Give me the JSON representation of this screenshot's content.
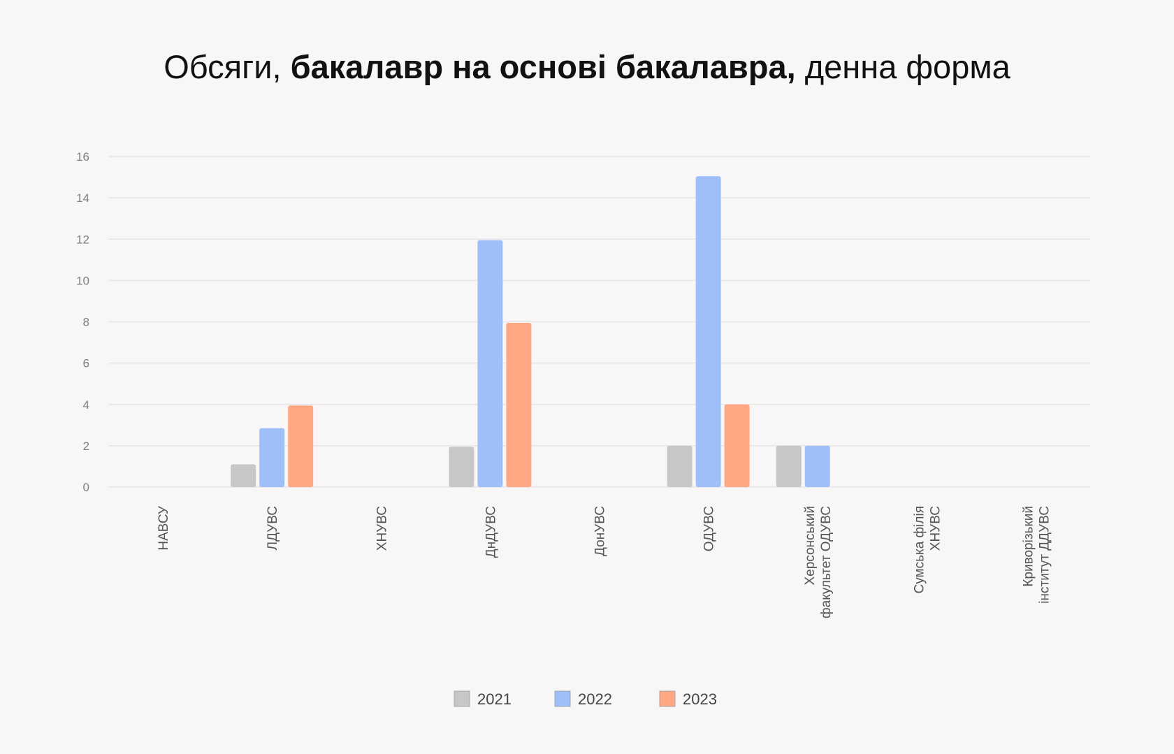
{
  "chart_data": {
    "type": "bar",
    "title_parts": {
      "before": "Обсяги, ",
      "bold": "бакалавр на основі бакалавра,",
      "after": " денна форма"
    },
    "categories": [
      [
        "НАВСУ"
      ],
      [
        "ЛДУВС"
      ],
      [
        "ХНУВС"
      ],
      [
        "ДнДУВС"
      ],
      [
        "ДонУВС"
      ],
      [
        "ОДУВС"
      ],
      [
        "Херсонський",
        "факультет ОДУВС"
      ],
      [
        "Сумська філія",
        "ХНУВС"
      ],
      [
        "Криворізький",
        "інститут ДДУВС"
      ]
    ],
    "series": [
      {
        "name": "2021",
        "color": "#c7c7c7",
        "values": [
          0,
          1.1,
          0,
          1.95,
          0,
          2,
          2,
          0,
          0
        ]
      },
      {
        "name": "2022",
        "color": "#9fbff9",
        "values": [
          0,
          2.85,
          0,
          11.95,
          0,
          15.05,
          2,
          0,
          0
        ]
      },
      {
        "name": "2023",
        "color": "#fea782",
        "values": [
          0,
          3.95,
          0,
          7.95,
          0,
          4,
          0,
          0,
          0
        ]
      }
    ],
    "yticks": [
      0,
      2,
      4,
      6,
      8,
      10,
      12,
      14,
      16
    ],
    "ylim": [
      0,
      16
    ],
    "grid": true,
    "legend": "bottom-center",
    "xlabel": "",
    "ylabel": ""
  }
}
